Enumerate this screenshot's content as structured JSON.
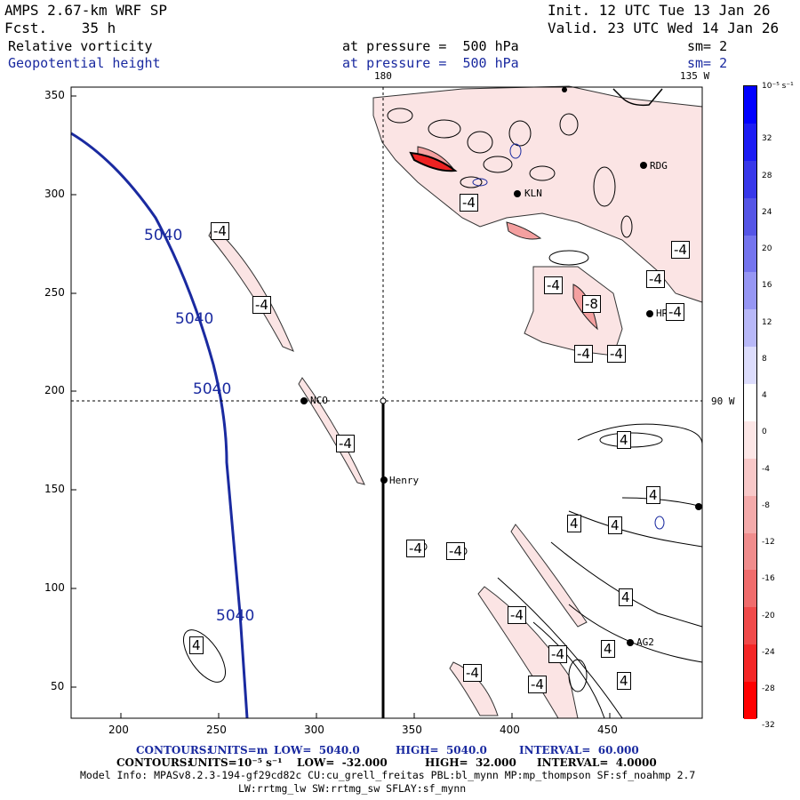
{
  "header": {
    "model": "AMPS 2.67-km WRF SP",
    "forecast": "Fcst.    35 h",
    "init": "Init. 12 UTC Tue 13 Jan 26",
    "valid": "Valid. 23 UTC Wed 14 Jan 26",
    "field1": "Relative vorticity",
    "field1_level": "at pressure =  500 hPa",
    "field1_sm": "sm= 2",
    "field2": "Geopotential height",
    "field2_level": "at pressure =  500 hPa",
    "field2_sm": "sm= 2"
  },
  "map": {
    "lon_top": "180",
    "lon_topright": "135 W",
    "lon_right": "90 W",
    "x_ticks": [
      "200",
      "250",
      "300",
      "350",
      "400",
      "450"
    ],
    "y_ticks": [
      "350",
      "300",
      "250",
      "200",
      "150",
      "100",
      "50"
    ],
    "stations": [
      "RDG",
      "KLN",
      "NCO",
      "Henry",
      "HRC",
      "AG2"
    ],
    "height_labels": [
      "5040",
      "5040",
      "5040",
      "5040"
    ],
    "vort_labels_neg": [
      "-4",
      "-4",
      "-4",
      "-4",
      "-4",
      "-4",
      "-4",
      "-4",
      "-4",
      "-4",
      "-4",
      "-4",
      "-4",
      "-4",
      "-4",
      "-4"
    ],
    "vort_label_min": "-8",
    "vort_labels_pos": [
      "4",
      "4",
      "4",
      "4",
      "4",
      "4",
      "4",
      "4"
    ]
  },
  "colorbar": {
    "unit": "10⁻⁵ s⁻¹",
    "labels": [
      "32",
      "28",
      "24",
      "20",
      "16",
      "12",
      "8",
      "4",
      "0",
      "-4",
      "-8",
      "-12",
      "-16",
      "-20",
      "-24",
      "-28",
      "-32"
    ],
    "colors": [
      "#0000ff",
      "#1c1cf4",
      "#3838ea",
      "#5555e6",
      "#7474ee",
      "#9696f4",
      "#b8b8f8",
      "#dcdcfc",
      "#ffffff",
      "#fce6e6",
      "#f8c8c8",
      "#f4aaaa",
      "#f08c8c",
      "#f06c6c",
      "#f04a4a",
      "#f42626",
      "#ff0000"
    ]
  },
  "footer": {
    "line1_contours": "CONTOURS:",
    "line1_units": "UNITS=m",
    "line1_low": "LOW=  5040.0",
    "line1_high": "HIGH=  5040.0",
    "line1_interval": "INTERVAL=  60.000",
    "line2_contours": "CONTOURS:",
    "line2_units": "UNITS=10⁻⁵ s⁻¹",
    "line2_low": "LOW=  -32.000",
    "line2_high": "HIGH=  32.000",
    "line2_interval": "INTERVAL=  4.0000",
    "model_info": "Model Info: MPASv8.2.3-194-gf29cd82c CU:cu_grell_freitas PBL:bl_mynn MP:mp_thompson SF:sf_noahmp 2.7",
    "model_info2": "LW:rrtmg_lw SW:rrtmg_sw SFLAY:sf_mynn"
  }
}
